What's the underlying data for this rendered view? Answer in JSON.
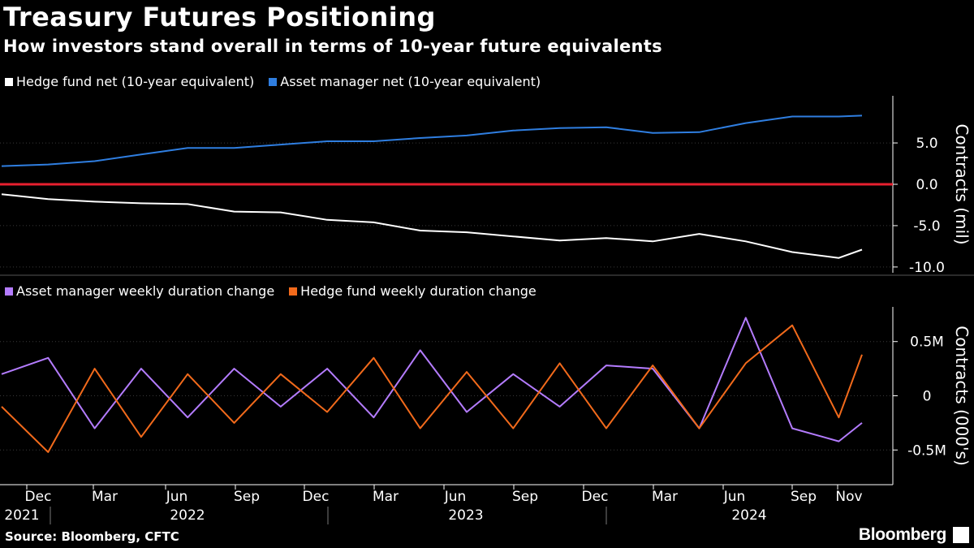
{
  "title": "Treasury Futures Positioning",
  "subtitle": "How investors stand overall in terms of 10-year future equivalents",
  "source": "Source: Bloomberg, CFTC",
  "brand": "Bloomberg",
  "colors": {
    "hedge_net": "#ffffff",
    "asset_net": "#2f7ee0",
    "zero_line": "#e8202f",
    "asset_weekly": "#b47cff",
    "hedge_weekly": "#f26a1b",
    "axis": "#ffffff",
    "grid": "#3a3a3a"
  },
  "time_axis": {
    "month_labels": [
      "Dec",
      "Mar",
      "Jun",
      "Sep",
      "Dec",
      "Mar",
      "Jun",
      "Sep",
      "Dec",
      "Mar",
      "Jun",
      "Sep",
      "Nov"
    ],
    "year_labels": [
      "2021",
      "2022",
      "2023",
      "2024"
    ]
  },
  "chart_data": [
    {
      "type": "line",
      "title": "",
      "ylabel": "Contracts (mil)",
      "yticks": [
        "5.0",
        "0.0",
        "-5.0",
        "-10.0"
      ],
      "ylim": [
        -10.7,
        10.7
      ],
      "grid": true,
      "legend_position": "top-left",
      "x": [
        "2021-10",
        "2021-12",
        "2022-02",
        "2022-04",
        "2022-06",
        "2022-08",
        "2022-10",
        "2022-12",
        "2023-02",
        "2023-04",
        "2023-06",
        "2023-08",
        "2023-10",
        "2023-12",
        "2024-02",
        "2024-04",
        "2024-06",
        "2024-08",
        "2024-10",
        "2024-11"
      ],
      "series": [
        {
          "name": "Hedge fund net (10-year equivalent)",
          "values": [
            -1.2,
            -1.8,
            -2.1,
            -2.3,
            -2.4,
            -3.3,
            -3.4,
            -4.3,
            -4.6,
            -5.6,
            -5.8,
            -6.3,
            -6.8,
            -6.5,
            -6.9,
            -6.0,
            -6.9,
            -8.2,
            -8.9,
            -7.9
          ]
        },
        {
          "name": "Asset manager net (10-year equivalent)",
          "values": [
            2.2,
            2.4,
            2.8,
            3.6,
            4.4,
            4.4,
            4.8,
            5.2,
            5.2,
            5.6,
            5.9,
            6.5,
            6.8,
            6.9,
            6.2,
            6.3,
            7.4,
            8.2,
            8.2,
            8.3
          ]
        }
      ]
    },
    {
      "type": "line",
      "title": "",
      "ylabel": "Contracts (000's)",
      "yticks": [
        "0.5M",
        "0",
        "-0.5M"
      ],
      "ylim": [
        -0.82,
        0.82
      ],
      "grid": true,
      "legend_position": "top-left",
      "x": [
        "2021-10",
        "2021-12",
        "2022-02",
        "2022-04",
        "2022-06",
        "2022-08",
        "2022-10",
        "2022-12",
        "2023-02",
        "2023-04",
        "2023-06",
        "2023-08",
        "2023-10",
        "2023-12",
        "2024-02",
        "2024-04",
        "2024-06",
        "2024-08",
        "2024-10",
        "2024-11"
      ],
      "series": [
        {
          "name": "Asset manager weekly duration change",
          "values": [
            0.2,
            0.35,
            -0.3,
            0.25,
            -0.2,
            0.25,
            -0.1,
            0.25,
            -0.2,
            0.42,
            -0.15,
            0.2,
            -0.1,
            0.28,
            0.25,
            -0.3,
            0.72,
            -0.3,
            -0.42,
            -0.25
          ]
        },
        {
          "name": "Hedge fund weekly duration change",
          "values": [
            -0.1,
            -0.52,
            0.25,
            -0.38,
            0.2,
            -0.25,
            0.2,
            -0.15,
            0.35,
            -0.3,
            0.22,
            -0.3,
            0.3,
            -0.3,
            0.28,
            -0.3,
            0.3,
            0.65,
            -0.2,
            0.38
          ]
        }
      ]
    }
  ]
}
